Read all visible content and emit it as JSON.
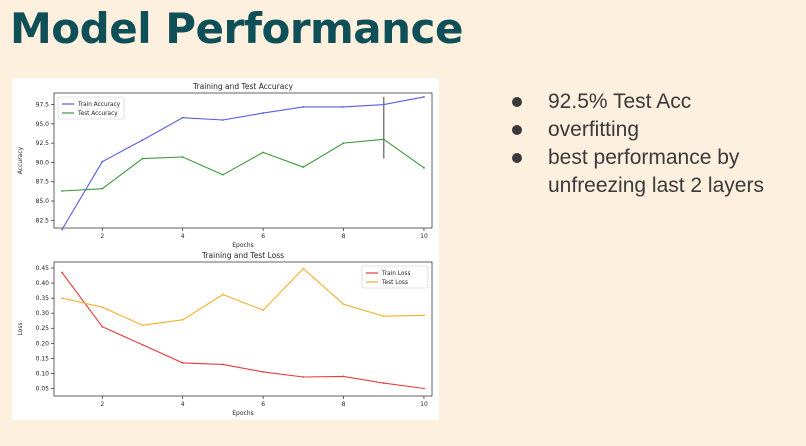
{
  "slide": {
    "title": "Model Performance",
    "bullets": [
      "92.5% Test Acc",
      "overfitting",
      "best performance by unfreezing last 2 layers"
    ]
  },
  "colors": {
    "title": "#0f4f57",
    "background": "#fdf0df",
    "train_accuracy": "#5a5ae6",
    "test_accuracy": "#3a9a3a",
    "train_loss": "#e63c3c",
    "test_loss": "#f0b030",
    "marker_line": "#777777"
  },
  "chart_data": [
    {
      "type": "line",
      "title": "Training and Test Accuracy",
      "xlabel": "Epochs",
      "ylabel": "Accuracy",
      "xlim": [
        0.8,
        10.2
      ],
      "ylim": [
        81.5,
        99.0
      ],
      "xticks": [
        2,
        4,
        6,
        8,
        10
      ],
      "yticks": [
        82.5,
        85.0,
        87.5,
        90.0,
        92.5,
        95.0,
        97.5
      ],
      "grid": false,
      "legend": "top-left",
      "x": [
        1,
        2,
        3,
        4,
        5,
        6,
        7,
        8,
        9,
        10
      ],
      "series": [
        {
          "name": "Train Accuracy",
          "color": "#5a5ae6",
          "values": [
            81.3,
            90.1,
            92.9,
            95.8,
            95.5,
            96.4,
            97.2,
            97.2,
            97.5,
            98.5
          ]
        },
        {
          "name": "Test Accuracy",
          "color": "#3a9a3a",
          "values": [
            86.3,
            86.6,
            90.5,
            90.7,
            88.4,
            91.3,
            89.4,
            92.5,
            93.0,
            89.3
          ]
        }
      ],
      "vline": {
        "x": 9,
        "y_range": [
          90.5,
          98.5
        ],
        "color": "#777777"
      }
    },
    {
      "type": "line",
      "title": "Training and Test Loss",
      "xlabel": "Epochs",
      "ylabel": "Loss",
      "xlim": [
        0.8,
        10.2
      ],
      "ylim": [
        0.025,
        0.47
      ],
      "xticks": [
        2,
        4,
        6,
        8,
        10
      ],
      "yticks": [
        0.05,
        0.1,
        0.15,
        0.2,
        0.25,
        0.3,
        0.35,
        0.4,
        0.45
      ],
      "grid": false,
      "legend": "top-right",
      "x": [
        1,
        2,
        3,
        4,
        5,
        6,
        7,
        8,
        9,
        10
      ],
      "series": [
        {
          "name": "Train Loss",
          "color": "#e63c3c",
          "values": [
            0.435,
            0.255,
            0.195,
            0.135,
            0.13,
            0.105,
            0.088,
            0.09,
            0.068,
            0.05
          ]
        },
        {
          "name": "Test Loss",
          "color": "#f0b030",
          "values": [
            0.35,
            0.32,
            0.26,
            0.278,
            0.362,
            0.31,
            0.448,
            0.33,
            0.29,
            0.293
          ]
        }
      ]
    }
  ]
}
